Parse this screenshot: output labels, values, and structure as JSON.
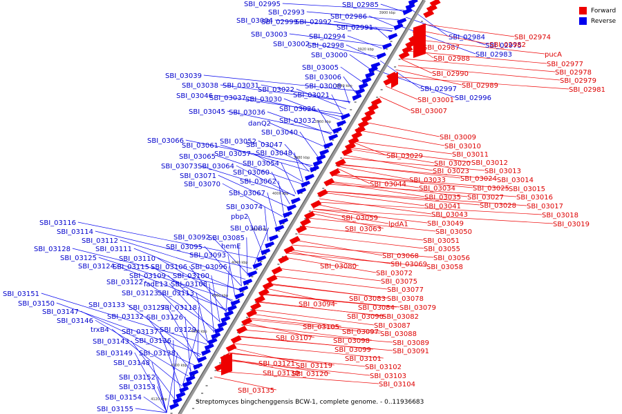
{
  "legend": {
    "forward_label": "Forward",
    "reverse_label": "Reverse",
    "forward_color": "#ee0000",
    "reverse_color": "#0000ee"
  },
  "caption": "Streptomyces bingchenggensis BCW-1, complete genome. - 0..11936683",
  "ticks": [
    "3900 kbp",
    "3920 kbp",
    "3940 kbp",
    "3960 kbp",
    "3980 kbp",
    "4000 kbp",
    "4020 kbp",
    "4040 kbp",
    "4060 kbp",
    "4080 kbp",
    "4100 kbp",
    "4120 kbp"
  ],
  "reverse_labels": [
    "SBI_02995",
    "SBI_02985",
    "SBI_02993",
    "SBI_03004",
    "SBI_02999",
    "SBI_02992",
    "SBI_02986",
    "SBI_02991",
    "SBI_03003",
    "SBI_02994",
    "SBI_03002",
    "SBI_02998",
    "SBI_03000",
    "SBI_03005",
    "SBI_03039",
    "SBI_03006",
    "SBI_03038",
    "SBI_03031",
    "SBI_03008",
    "SBI_03046",
    "SBI_03037",
    "SBI_03022",
    "SBI_03021",
    "SBI_03030",
    "SBI_03045",
    "SBI_03036",
    "SBI_03026",
    "danQ2",
    "SBI_03032",
    "SBI_03040",
    "SBI_03066",
    "SBI_03061",
    "SBI_03052",
    "SBI_03047",
    "SBI_03065",
    "SBI_03057",
    "SBI_03048",
    "SBI_03073",
    "SBI_03064",
    "SBI_03054",
    "SBI_03071",
    "SBI_03060",
    "SBI_03070",
    "SBI_03062",
    "SBI_03067",
    "SBI_03074",
    "pbp2",
    "SBI_03116",
    "SBI_03081",
    "SBI_03114",
    "SBI_03092",
    "SBI_03085",
    "SBI_03112",
    "SBI_03095",
    "hemE",
    "SBI_03128",
    "SBI_03111",
    "SBI_03093",
    "SBI_03125",
    "SBI_03110",
    "SBI_03124",
    "SBI_03115",
    "SBI_03106",
    "SBI_03096",
    "SBI_03109",
    "SBI_03100",
    "SBI_03122",
    "fadE13",
    "SBI_03108",
    "SBI_03123",
    "SBI_03113",
    "SBI_03151",
    "SBI_03150",
    "SBI_03133",
    "SBI_03127",
    "SBI_03118",
    "SBI_03147",
    "SBI_03132",
    "SBI_03126",
    "SBI_03146",
    "SBI_03129",
    "trxB4",
    "SBI_03137",
    "SBI_03143",
    "SBI_03136",
    "SBI_03149",
    "SBI_03138",
    "SBI_03148",
    "SBI_03152",
    "SBI_03153",
    "SBI_03154",
    "SBI_03155",
    "SBI_02984",
    "SBI_02975",
    "SBI_02983",
    "SBI_02997",
    "SBI_02996"
  ],
  "forward_labels": [
    "SBI_02974",
    "SBI_02987",
    "SBI_02982",
    "pucA",
    "SBI_02988",
    "SBI_02977",
    "SBI_02978",
    "SBI_02990",
    "SBI_02979",
    "SBI_02989",
    "SBI_02981",
    "SBI_03001",
    "SBI_03007",
    "SBI_03009",
    "SBI_03010",
    "SBI_03011",
    "SBI_03029",
    "SBI_03020",
    "SBI_03012",
    "SBI_03023",
    "SBI_03013",
    "SBI_03033",
    "SBI_03024",
    "SBI_03014",
    "SBI_03044",
    "SBI_03034",
    "SBI_03025",
    "SBI_03015",
    "SBI_03035",
    "SBI_03027",
    "SBI_03016",
    "SBI_03041",
    "SBI_03028",
    "SBI_03017",
    "SBI_03043",
    "SBI_03018",
    "SBI_03059",
    "SBI_03049",
    "SBI_03019",
    "SBI_03063",
    "lpdA1",
    "SBI_03050",
    "SBI_03051",
    "SBI_03055",
    "SBI_03068",
    "SBI_03056",
    "SBI_03058",
    "SBI_03069",
    "SBI_03080",
    "SBI_03072",
    "SBI_03075",
    "SBI_03077",
    "SBI_03083",
    "SBI_03078",
    "SBI_03094",
    "SBI_03084",
    "SBI_03079",
    "SBI_03090",
    "SBI_03082",
    "SBI_03087",
    "SBI_03105",
    "SBI_03097",
    "SBI_03088",
    "SBI_03107",
    "SBI_03098",
    "SBI_03089",
    "SBI_03099",
    "SBI_03091",
    "SBI_03101",
    "SBI_03121",
    "SBI_03119",
    "SBI_03102",
    "SBI_03130",
    "SBI_03120",
    "SBI_03103",
    "SBI_03104",
    "SBI_03135"
  ]
}
